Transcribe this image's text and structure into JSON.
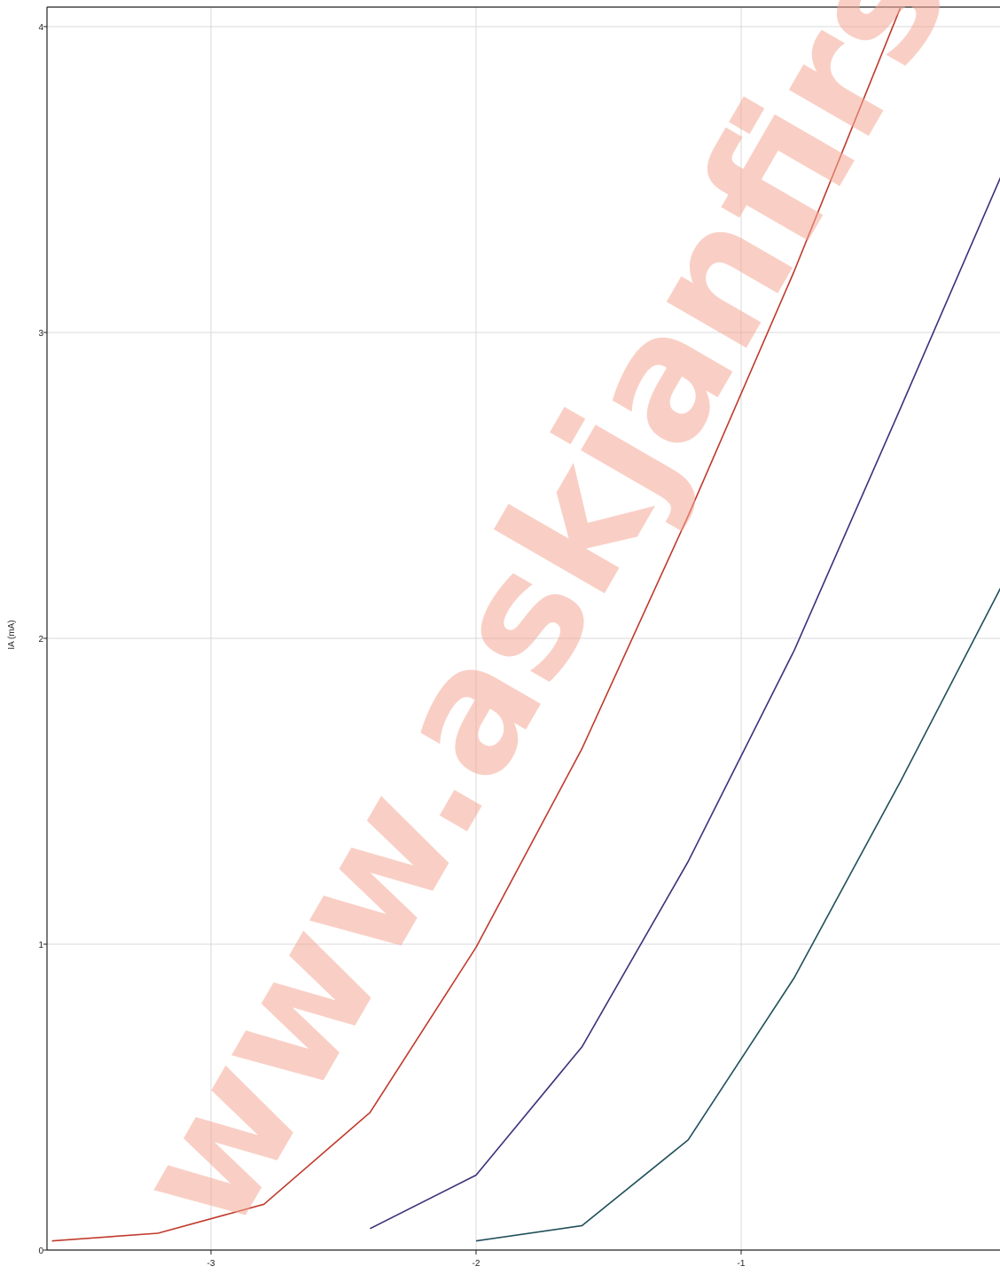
{
  "chart_data": {
    "type": "line",
    "title": "",
    "xlabel": "",
    "ylabel": "IA (mA)",
    "xlim": [
      -3.6,
      0
    ],
    "ylim": [
      0,
      4.06
    ],
    "grid": true,
    "x_ticks": [
      -3,
      -2,
      -1
    ],
    "y_ticks": [
      0,
      1,
      2,
      3,
      4
    ],
    "x_tick_labels": [
      "-3",
      "-2",
      "-1"
    ],
    "y_tick_labels": [
      "0",
      "1",
      "2",
      "3",
      "4"
    ],
    "series": [
      {
        "color": "#c0392b",
        "points": [
          [
            -3.6,
            0.03
          ],
          [
            -3.2,
            0.055
          ],
          [
            -2.8,
            0.15
          ],
          [
            -2.4,
            0.45
          ],
          [
            -2.0,
            0.99
          ],
          [
            -1.6,
            1.64
          ],
          [
            -1.2,
            2.4
          ],
          [
            -0.8,
            3.2
          ],
          [
            -0.4,
            4.06
          ]
        ]
      },
      {
        "color": "#3d2f7a",
        "points": [
          [
            -2.4,
            0.07
          ],
          [
            -2.0,
            0.245
          ],
          [
            -1.6,
            0.665
          ],
          [
            -1.2,
            1.27
          ],
          [
            -0.8,
            1.96
          ],
          [
            -0.4,
            2.75
          ],
          [
            0.0,
            3.55
          ]
        ]
      },
      {
        "color": "#1f4f5a",
        "points": [
          [
            -2.0,
            0.03
          ],
          [
            -1.6,
            0.08
          ],
          [
            -1.2,
            0.36
          ],
          [
            -0.8,
            0.89
          ],
          [
            -0.4,
            1.53
          ],
          [
            0.0,
            2.2
          ]
        ]
      }
    ]
  },
  "watermark": {
    "text": "www.askjanfirst.com"
  }
}
